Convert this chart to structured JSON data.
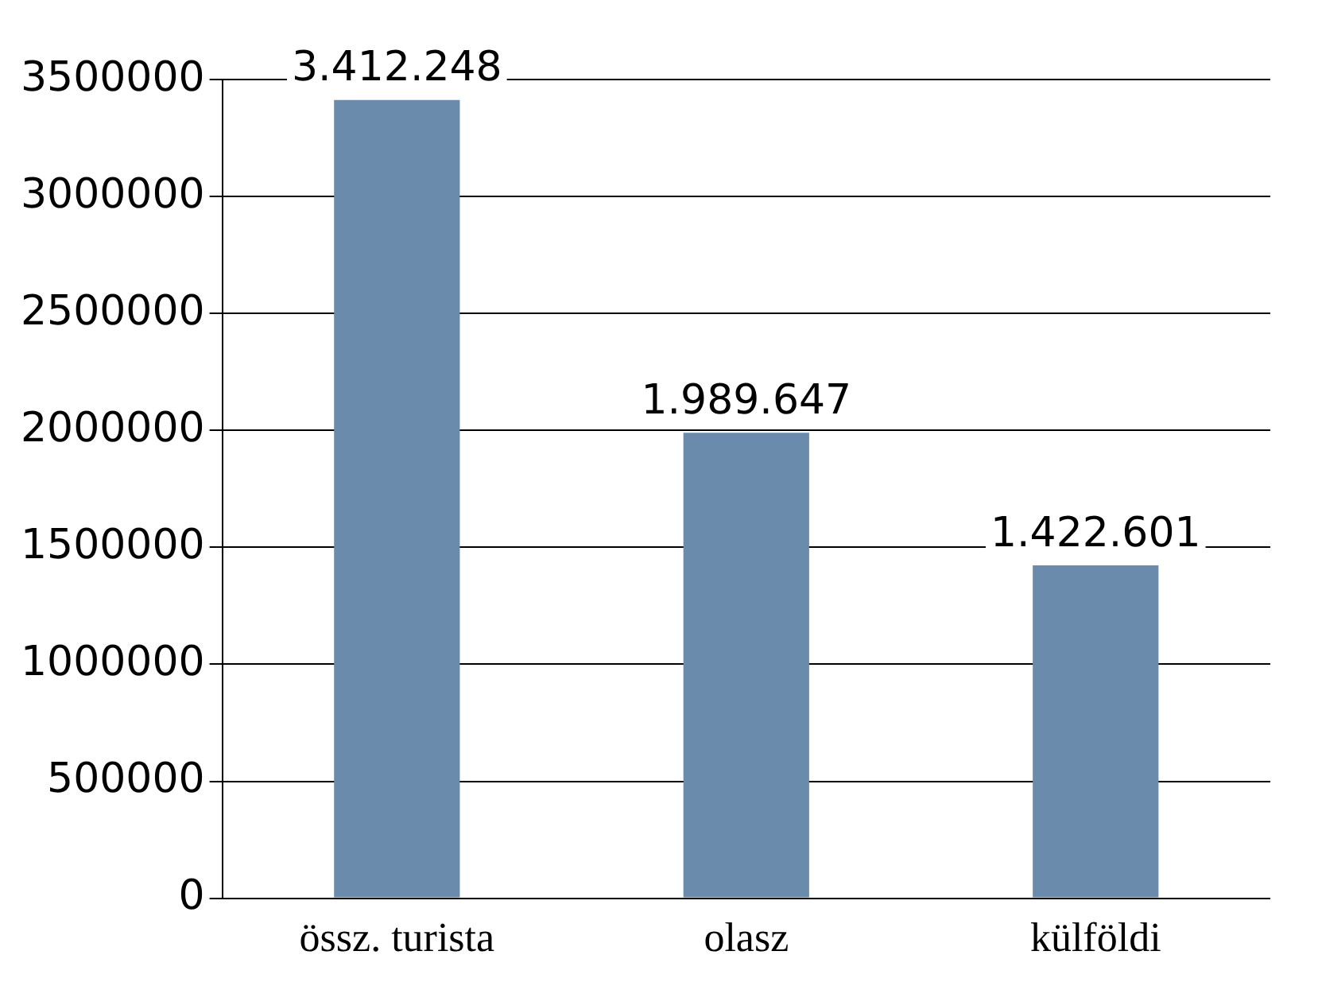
{
  "chart_data": {
    "type": "bar",
    "categories": [
      "össz. turista",
      "olasz",
      "külföldi"
    ],
    "values": [
      3412248,
      1989647,
      1422601
    ],
    "value_labels": [
      "3.412.248",
      "1.989.647",
      "1.422.601"
    ],
    "color": "#6a8bab",
    "ylim": [
      0,
      3500000
    ],
    "yticks": [
      0,
      500000,
      1000000,
      1500000,
      2000000,
      2500000,
      3000000,
      3500000
    ],
    "grid": "y",
    "legend": false
  }
}
